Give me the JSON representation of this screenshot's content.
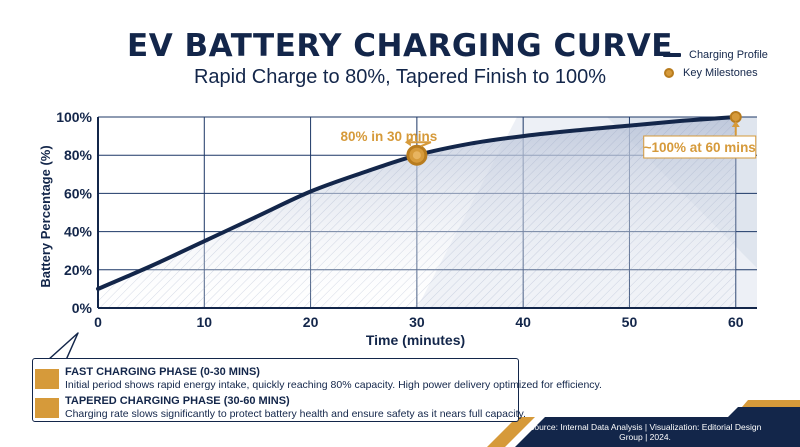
{
  "header": {
    "title": "EV BATTERY CHARGING CURVE",
    "subtitle": "Rapid Charge to 80%, Tapered Finish to 100%"
  },
  "legend": {
    "profile_label": "Charging Profile",
    "milestone_label": "Key Milestones"
  },
  "colors": {
    "navy": "#13264a",
    "gold": "#d69a3a",
    "gold_dark": "#b87c1e",
    "grid": "#1c3766"
  },
  "chart_data": {
    "type": "line",
    "title": "EV BATTERY CHARGING CURVE",
    "subtitle": "Rapid Charge to 80%, Tapered Finish to 100%",
    "xlabel": "Time (minutes)",
    "ylabel": "Battery Percentage (%)",
    "xlim": [
      0,
      62
    ],
    "ylim": [
      0,
      100
    ],
    "x_ticks": [
      0,
      10,
      20,
      30,
      40,
      50,
      60
    ],
    "x_tick_labels": [
      "0",
      "10",
      "20",
      "30",
      "40",
      "50",
      "60"
    ],
    "y_ticks": [
      0,
      20,
      40,
      60,
      80,
      100
    ],
    "y_tick_labels": [
      "0%",
      "20%",
      "40%",
      "60%",
      "80%",
      "100%"
    ],
    "grid": true,
    "legend_position": "top-right",
    "series": [
      {
        "name": "Charging Profile",
        "x": [
          0,
          5,
          10,
          15,
          20,
          25,
          30,
          35,
          40,
          45,
          50,
          55,
          60
        ],
        "y": [
          10,
          22,
          35,
          48,
          61,
          71,
          80,
          86,
          90,
          93,
          95.5,
          98,
          100
        ]
      },
      {
        "name": "Key Milestones",
        "x": [
          30,
          60
        ],
        "y": [
          80,
          100
        ]
      }
    ],
    "annotations": [
      {
        "x": 30,
        "y": 80,
        "text": "80% in 30 mins"
      },
      {
        "x": 60,
        "y": 100,
        "text": "~100% at 60 mins"
      }
    ]
  },
  "info": {
    "fast_title": "FAST CHARGING PHASE (0-30 MINS)",
    "fast_text": "Initial period shows rapid energy intake, quickly reaching 80% capacity. High power delivery optimized for efficiency.",
    "tapered_title": "TAPERED CHARGING PHASE (30-60 MINS)",
    "tapered_text": "Charging rate slows significantly to protect battery health and ensure safety as it nears full capacity."
  },
  "footer": {
    "source": "Source: Internal Data Analysis | Visualization: Editorial Design Group | 2024."
  }
}
